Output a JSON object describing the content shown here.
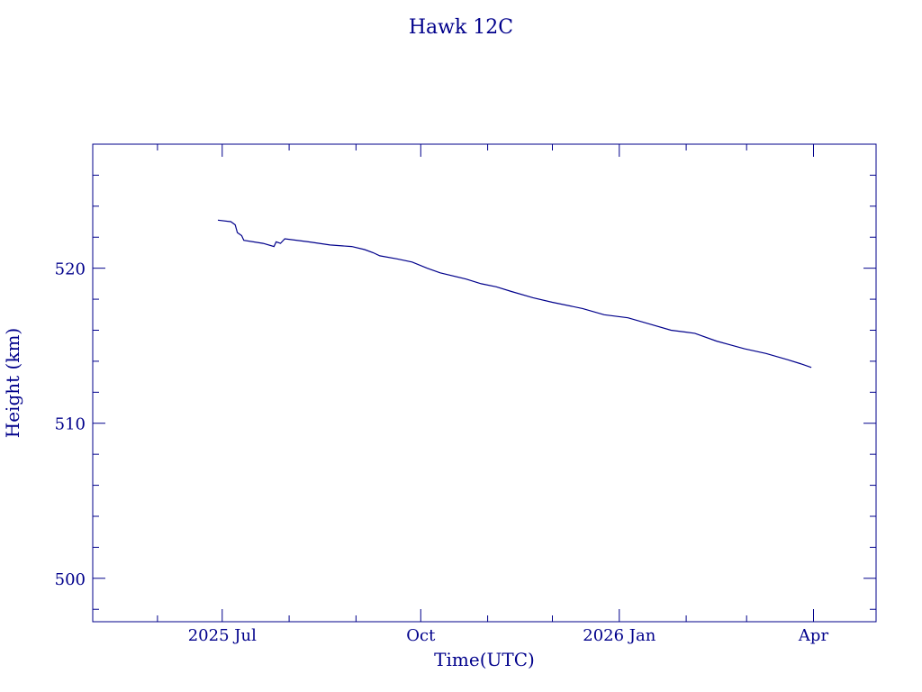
{
  "chart_data": {
    "type": "line",
    "title": "Hawk 12C",
    "xlabel": "Time(UTC)",
    "ylabel": "Height (km)",
    "x_ticks": [
      {
        "date": "2025-07-01",
        "label": "2025 Jul"
      },
      {
        "date": "2025-10-01",
        "label": "Oct"
      },
      {
        "date": "2026-01-01",
        "label": "2026 Jan"
      },
      {
        "date": "2026-04-01",
        "label": "Apr"
      }
    ],
    "y_ticks": [
      500,
      510,
      520
    ],
    "xlim": [
      "2025-05-02",
      "2026-04-30"
    ],
    "ylim": [
      497.2,
      528
    ],
    "grid": false,
    "series": [
      {
        "color": "#00008b",
        "points": [
          {
            "x": "2025-06-29",
            "y": 523.1
          },
          {
            "x": "2025-07-05",
            "y": 523.0
          },
          {
            "x": "2025-07-07",
            "y": 522.8
          },
          {
            "x": "2025-07-08",
            "y": 522.3
          },
          {
            "x": "2025-07-10",
            "y": 522.1
          },
          {
            "x": "2025-07-11",
            "y": 521.8
          },
          {
            "x": "2025-07-20",
            "y": 521.6
          },
          {
            "x": "2025-07-25",
            "y": 521.4
          },
          {
            "x": "2025-07-26",
            "y": 521.7
          },
          {
            "x": "2025-07-28",
            "y": 521.6
          },
          {
            "x": "2025-07-30",
            "y": 521.9
          },
          {
            "x": "2025-08-10",
            "y": 521.7
          },
          {
            "x": "2025-08-20",
            "y": 521.5
          },
          {
            "x": "2025-08-30",
            "y": 521.4
          },
          {
            "x": "2025-09-05",
            "y": 521.2
          },
          {
            "x": "2025-09-09",
            "y": 521.0
          },
          {
            "x": "2025-09-12",
            "y": 520.8
          },
          {
            "x": "2025-09-20",
            "y": 520.6
          },
          {
            "x": "2025-09-27",
            "y": 520.4
          },
          {
            "x": "2025-10-04",
            "y": 520.0
          },
          {
            "x": "2025-10-10",
            "y": 519.7
          },
          {
            "x": "2025-10-22",
            "y": 519.3
          },
          {
            "x": "2025-10-29",
            "y": 519.0
          },
          {
            "x": "2025-11-05",
            "y": 518.8
          },
          {
            "x": "2025-11-12",
            "y": 518.5
          },
          {
            "x": "2025-11-22",
            "y": 518.1
          },
          {
            "x": "2025-12-01",
            "y": 517.8
          },
          {
            "x": "2025-12-15",
            "y": 517.4
          },
          {
            "x": "2025-12-25",
            "y": 517.0
          },
          {
            "x": "2026-01-05",
            "y": 516.8
          },
          {
            "x": "2026-01-15",
            "y": 516.4
          },
          {
            "x": "2026-01-25",
            "y": 516.0
          },
          {
            "x": "2026-02-05",
            "y": 515.8
          },
          {
            "x": "2026-02-15",
            "y": 515.3
          },
          {
            "x": "2026-02-28",
            "y": 514.8
          },
          {
            "x": "2026-03-10",
            "y": 514.5
          },
          {
            "x": "2026-03-20",
            "y": 514.1
          },
          {
            "x": "2026-03-27",
            "y": 513.8
          },
          {
            "x": "2026-03-31",
            "y": 513.6
          }
        ]
      }
    ]
  }
}
